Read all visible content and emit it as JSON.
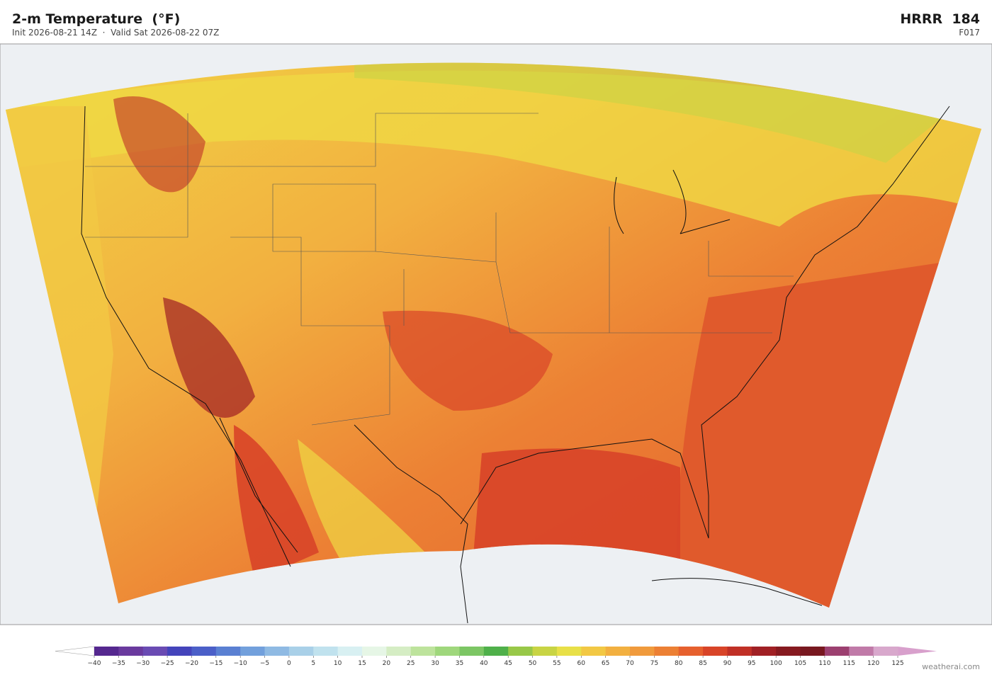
{
  "header": {
    "title": "2-m Temperature  (°F)",
    "subtitle": "Init 2026-08-21 14Z  ·  Valid Sat 2026-08-22 07Z",
    "model": "HRRR  184",
    "forecast_hour": "F017"
  },
  "colorbar": {
    "ticks": [
      {
        "value": -40,
        "label": "−40"
      },
      {
        "value": -35,
        "label": "−35"
      },
      {
        "value": -30,
        "label": "−30"
      },
      {
        "value": -25,
        "label": "−25"
      },
      {
        "value": -20,
        "label": "−20"
      },
      {
        "value": -15,
        "label": "−15"
      },
      {
        "value": -10,
        "label": "−10"
      },
      {
        "value": -5,
        "label": "−5"
      },
      0,
      5,
      10,
      15,
      20,
      25,
      30,
      35,
      40,
      45,
      50,
      55,
      60,
      65,
      70,
      75,
      80,
      85,
      90,
      95,
      100,
      105,
      110,
      115,
      120,
      125
    ],
    "colors": [
      "#55288f",
      "#6a3a9e",
      "#6a4bb3",
      "#4444bb",
      "#4b5fc8",
      "#5a80d2",
      "#72a0dc",
      "#8fbae3",
      "#a9d0e8",
      "#c0e2ee",
      "#d8f0f2",
      "#e6f6e6",
      "#d5edc4",
      "#bde39c",
      "#9fd77c",
      "#7cc664",
      "#4fb04a",
      "#98c848",
      "#c8d444",
      "#e8e048",
      "#f2c844",
      "#f2b040",
      "#f09a3c",
      "#ec8034",
      "#e6602e",
      "#d84428",
      "#c03026",
      "#a02024",
      "#861a20",
      "#781820",
      "#9c4070",
      "#c07aa8",
      "#d8a8cc"
    ],
    "under_color": "#ffffff",
    "over_color": "#d8a0cc"
  },
  "footer": {
    "credit": "weatherai.com"
  }
}
